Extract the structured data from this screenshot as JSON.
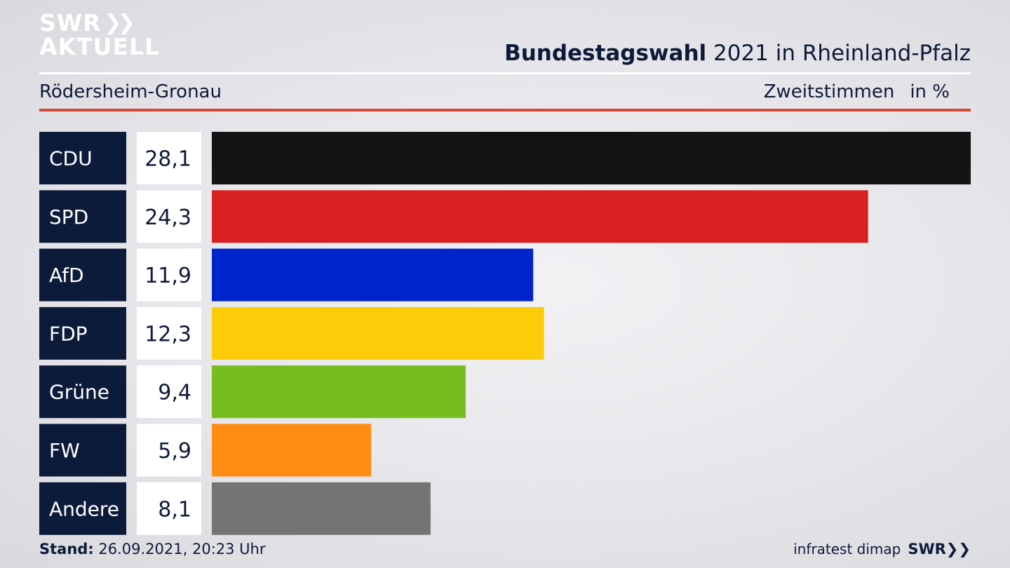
{
  "header": {
    "logo_line1": "SWR",
    "logo_line2": "AKTUELL",
    "title_bold": "Bundestagswahl",
    "title_rest": " 2021 in Rheinland-Pfalz",
    "subtitle": "Rödersheim-Gronau",
    "unit_label": "Zweitstimmen",
    "unit": "in %"
  },
  "footer": {
    "stand_label": "Stand:",
    "stand_value": " 26.09.2021, 20:23 Uhr",
    "source": "infratest dimap",
    "brand": "SWR"
  },
  "chart_data": {
    "type": "bar",
    "orientation": "horizontal",
    "categories": [
      "CDU",
      "SPD",
      "AfD",
      "FDP",
      "Grüne",
      "FW",
      "Andere"
    ],
    "values": [
      28.1,
      24.3,
      11.9,
      12.3,
      9.4,
      5.9,
      8.1
    ],
    "value_labels": [
      "28,1",
      "24,3",
      "11,9",
      "12,3",
      "9,4",
      "5,9",
      "8,1"
    ],
    "colors": [
      "#141414",
      "#d82020",
      "#0024cc",
      "#fccc08",
      "#76be1e",
      "#ff8c14",
      "#747474"
    ],
    "xlim": [
      0,
      28.1
    ],
    "grid": false,
    "legend": "none"
  }
}
